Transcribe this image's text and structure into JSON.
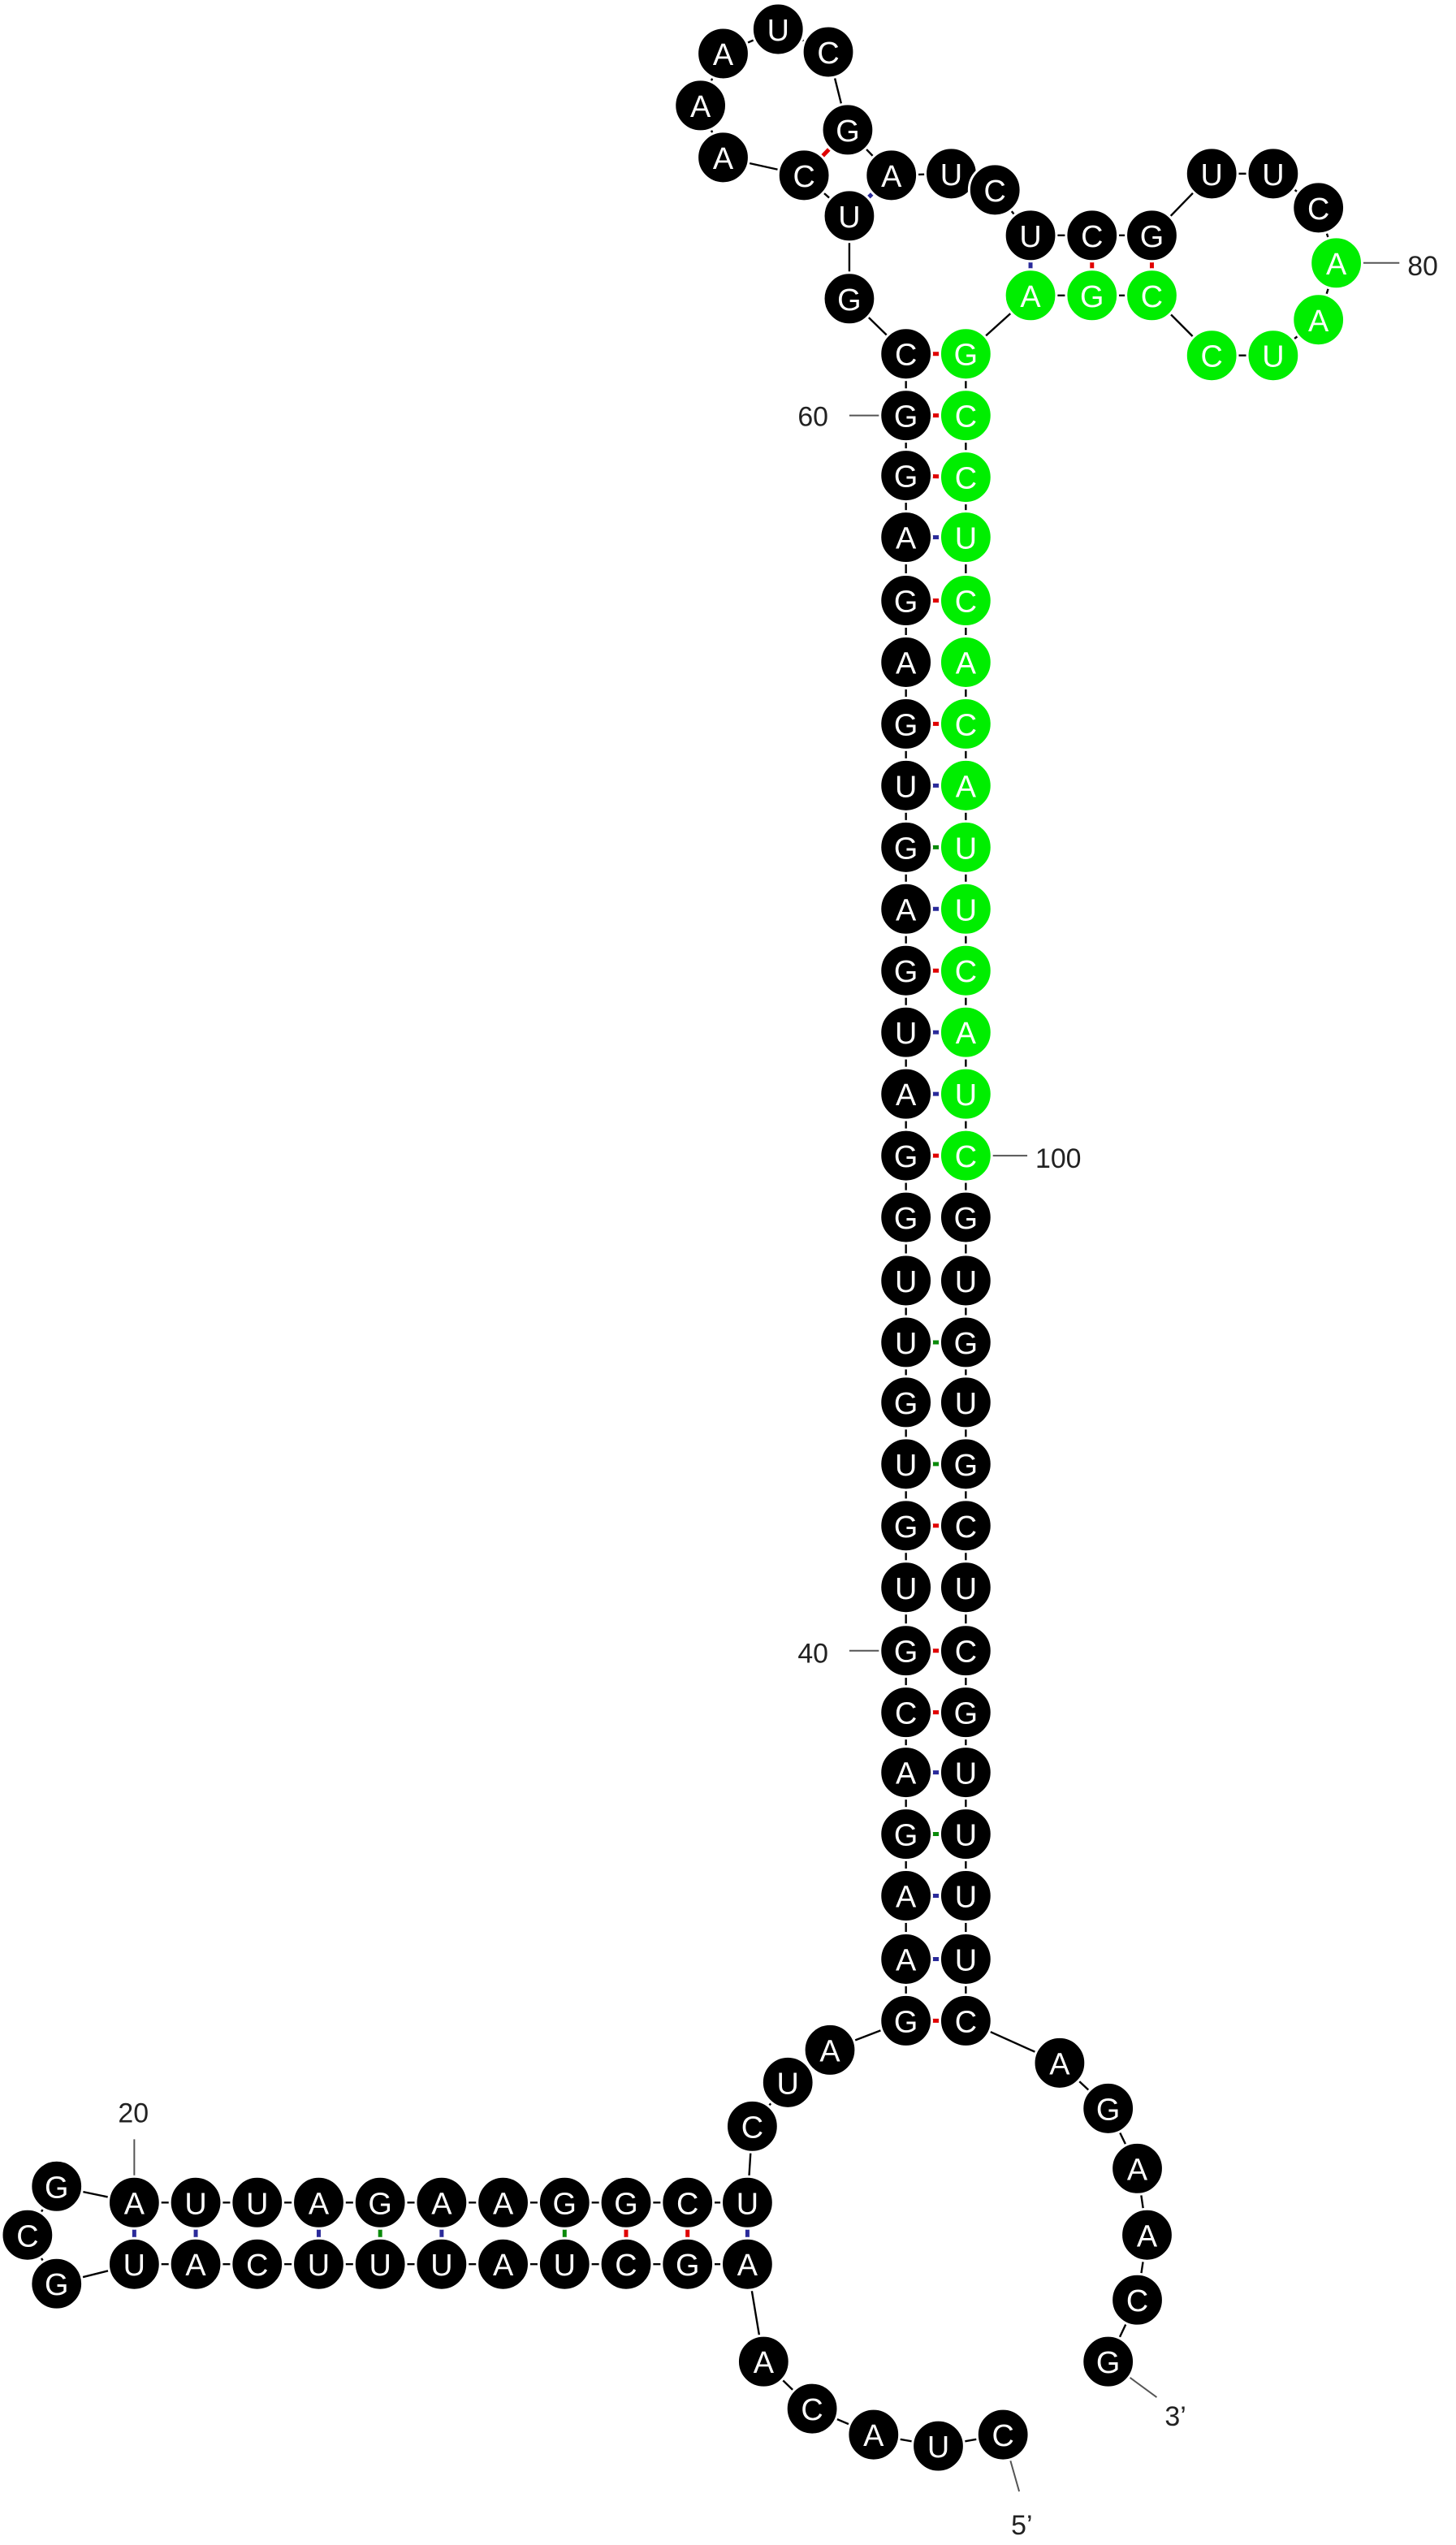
{
  "nucleotides": [
    "C",
    "U",
    "A",
    "C",
    "A",
    "A",
    "G",
    "C",
    "U",
    "A",
    "U",
    "U",
    "U",
    "C",
    "A",
    "U",
    "G",
    "C",
    "G",
    "A",
    "U",
    "U",
    "A",
    "G",
    "A",
    "A",
    "G",
    "G",
    "C",
    "U",
    "C",
    "U",
    "A",
    "G",
    "A",
    "A",
    "G",
    "A",
    "C",
    "G",
    "U",
    "G",
    "U",
    "G",
    "U",
    "U",
    "G",
    "G",
    "A",
    "U",
    "G",
    "A",
    "G",
    "U",
    "G",
    "A",
    "G",
    "A",
    "G",
    "G",
    "C",
    "G",
    "U",
    "C",
    "A",
    "A",
    "A",
    "U",
    "C",
    "G",
    "A",
    "U",
    "C",
    "U",
    "C",
    "G",
    "U",
    "U",
    "C",
    "A",
    "A",
    "U",
    "C",
    "C",
    "G",
    "A",
    "G",
    "C",
    "C",
    "U",
    "C",
    "A",
    "C",
    "A",
    "U",
    "U",
    "C",
    "A",
    "U",
    "C",
    "G",
    "U",
    "G",
    "U",
    "G",
    "C",
    "U",
    "C",
    "G",
    "U",
    "U",
    "U",
    "U",
    "C",
    "A",
    "G",
    "A",
    "A",
    "C",
    "G"
  ],
  "position_labels": [
    "20",
    "40",
    "60",
    "80",
    "100"
  ],
  "ends": {
    "five_prime": "5’",
    "three_prime": "3’"
  }
}
